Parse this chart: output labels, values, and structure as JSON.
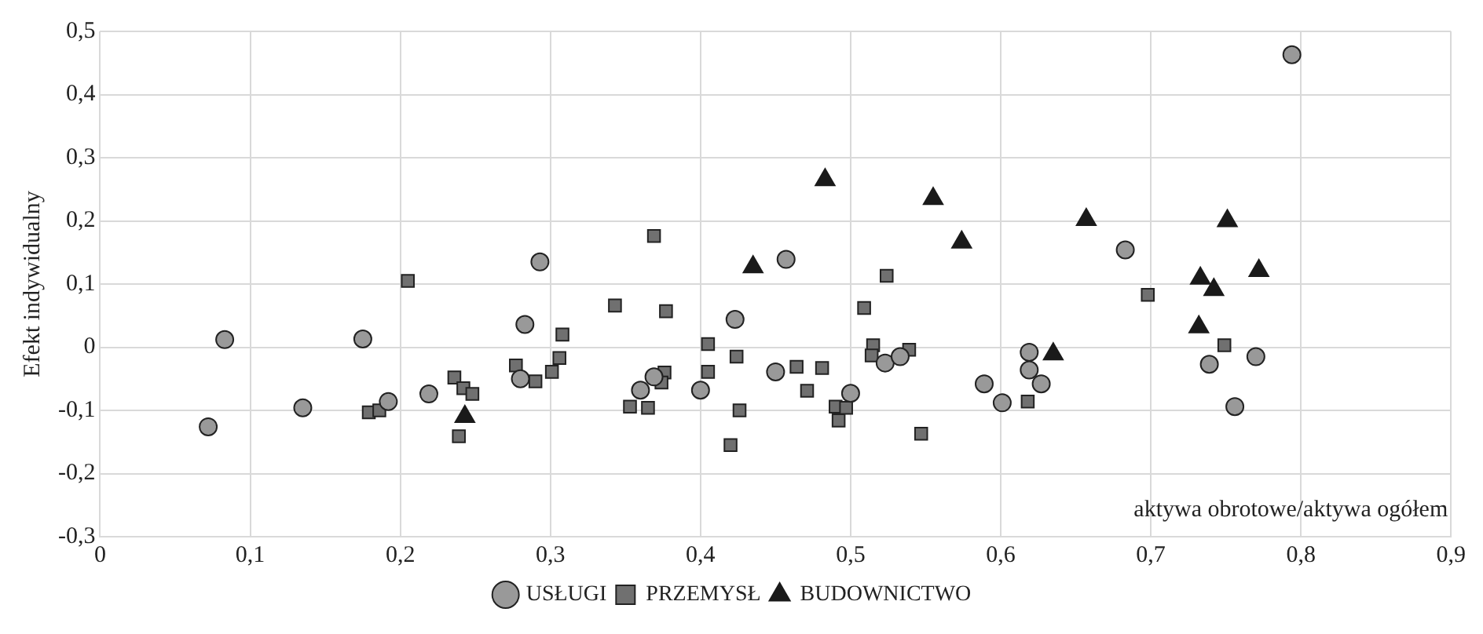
{
  "chart_data": {
    "type": "scatter",
    "xlabel": "aktywa obrotowe/aktywa ogółem",
    "ylabel": "Efekt indywidualny",
    "xlim": [
      0,
      0.9
    ],
    "xticks": [
      {
        "value": 0,
        "label": "0"
      },
      {
        "value": 0.1,
        "label": "0,1"
      },
      {
        "value": 0.2,
        "label": "0,2"
      },
      {
        "value": 0.3,
        "label": "0,3"
      },
      {
        "value": 0.4,
        "label": "0,4"
      },
      {
        "value": 0.5,
        "label": "0,5"
      },
      {
        "value": 0.6,
        "label": "0,6"
      },
      {
        "value": 0.7,
        "label": "0,7"
      },
      {
        "value": 0.8,
        "label": "0,8"
      },
      {
        "value": 0.9,
        "label": "0,9"
      }
    ],
    "ylim": [
      -0.3,
      0.5
    ],
    "yticks": [
      {
        "value": -0.3,
        "label": "-0,3"
      },
      {
        "value": -0.2,
        "label": "-0,2"
      },
      {
        "value": -0.1,
        "label": "-0,1"
      },
      {
        "value": 0,
        "label": "0"
      },
      {
        "value": 0.1,
        "label": "0,1"
      },
      {
        "value": 0.2,
        "label": "0,2"
      },
      {
        "value": 0.3,
        "label": "0,3"
      },
      {
        "value": 0.4,
        "label": "0,4"
      },
      {
        "value": 0.5,
        "label": "0,5"
      }
    ],
    "grid": true,
    "legend": "bottom",
    "series": [
      {
        "name": "USŁUGI",
        "color": "#999999",
        "marker": "circle",
        "x": [
          0.083,
          0.072,
          0.135,
          0.175,
          0.192,
          0.219,
          0.293,
          0.283,
          0.28,
          0.457,
          0.423,
          0.45,
          0.4,
          0.36,
          0.369,
          0.5,
          0.523,
          0.533,
          0.589,
          0.601,
          0.794,
          0.683,
          0.619,
          0.619,
          0.627,
          0.739,
          0.77,
          0.756
        ],
        "values": [
          0.012,
          -0.126,
          -0.096,
          0.013,
          -0.086,
          -0.074,
          0.135,
          0.036,
          -0.05,
          0.139,
          0.044,
          -0.039,
          -0.068,
          -0.068,
          -0.047,
          -0.073,
          -0.025,
          -0.015,
          -0.058,
          -0.088,
          0.463,
          0.154,
          -0.008,
          -0.036,
          -0.058,
          -0.027,
          -0.015,
          -0.094
        ]
      },
      {
        "name": "PRZEMYSŁ",
        "color": "#707070",
        "marker": "square",
        "x": [
          0.205,
          0.179,
          0.186,
          0.236,
          0.242,
          0.248,
          0.239,
          0.277,
          0.29,
          0.306,
          0.308,
          0.301,
          0.369,
          0.343,
          0.377,
          0.405,
          0.424,
          0.405,
          0.376,
          0.374,
          0.353,
          0.365,
          0.426,
          0.42,
          0.464,
          0.481,
          0.471,
          0.49,
          0.497,
          0.492,
          0.509,
          0.524,
          0.515,
          0.514,
          0.539,
          0.547,
          0.698,
          0.749,
          0.618
        ],
        "values": [
          0.105,
          -0.103,
          -0.1,
          -0.048,
          -0.065,
          -0.074,
          -0.141,
          -0.029,
          -0.054,
          -0.017,
          0.02,
          -0.039,
          0.176,
          0.066,
          0.057,
          0.005,
          -0.015,
          -0.039,
          -0.04,
          -0.056,
          -0.094,
          -0.096,
          -0.1,
          -0.155,
          -0.031,
          -0.033,
          -0.069,
          -0.094,
          -0.096,
          -0.116,
          0.062,
          0.113,
          0.003,
          -0.013,
          -0.004,
          -0.137,
          0.083,
          0.003,
          -0.086
        ]
      },
      {
        "name": "BUDOWNICTWO",
        "color": "#1a1a1a",
        "marker": "triangle",
        "x": [
          0.243,
          0.435,
          0.483,
          0.555,
          0.574,
          0.635,
          0.657,
          0.732,
          0.733,
          0.742,
          0.751,
          0.772
        ],
        "values": [
          -0.11,
          0.127,
          0.265,
          0.235,
          0.166,
          -0.011,
          0.202,
          0.032,
          0.109,
          0.091,
          0.2,
          0.121
        ]
      }
    ]
  }
}
